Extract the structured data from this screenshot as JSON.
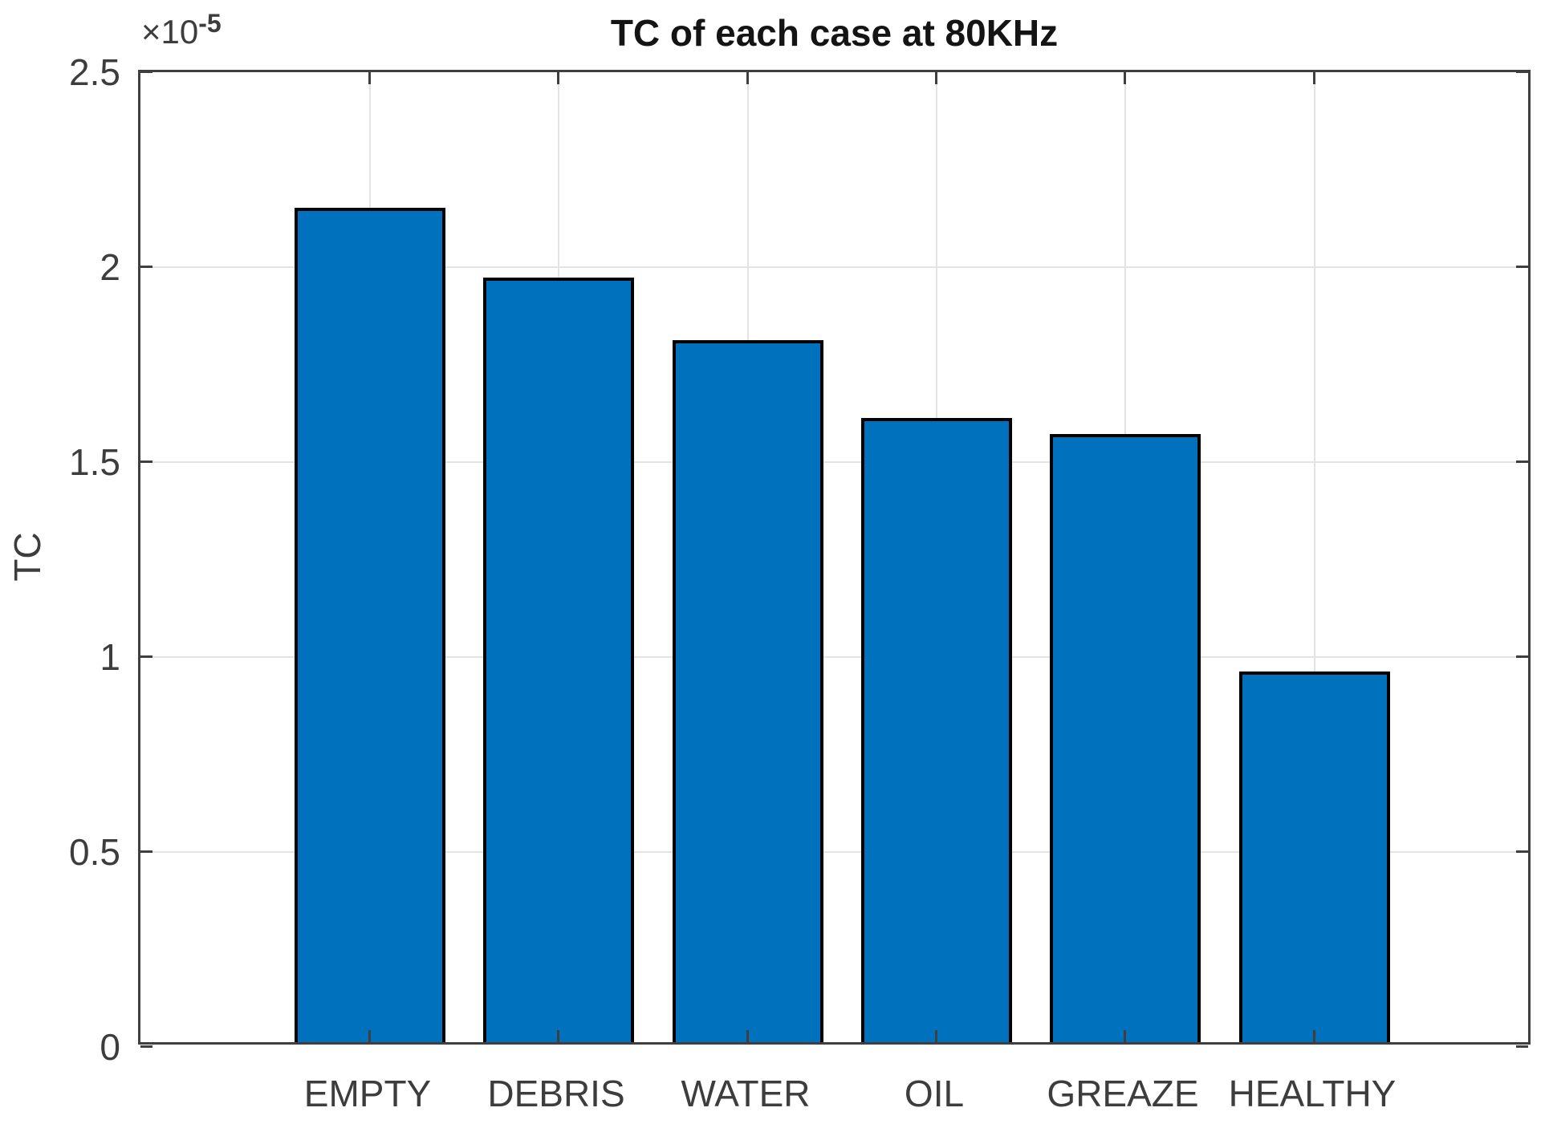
{
  "chart_data": {
    "type": "bar",
    "title": "TC of each case at 80KHz",
    "xlabel": "",
    "ylabel": "TC",
    "y_multiplier": {
      "base": "×10",
      "exponent": "-5"
    },
    "categories": [
      "EMPTY",
      "DEBRIS",
      "WATER",
      "OIL",
      "GREAZE",
      "HEALTHY"
    ],
    "values": [
      2.14e-05,
      1.96e-05,
      1.8e-05,
      1.6e-05,
      1.56e-05,
      9.5e-06
    ],
    "values_in_1e-5_units": [
      2.14,
      1.96,
      1.8,
      1.6,
      1.56,
      0.95
    ],
    "ylim": [
      0,
      2.5e-05
    ],
    "ylim_in_1e-5_units": [
      0,
      2.5
    ],
    "ytick_labels": [
      "0",
      "0.5",
      "1",
      "1.5",
      "2",
      "2.5"
    ],
    "ytick_values_in_1e-5_units": [
      0,
      0.5,
      1,
      1.5,
      2,
      2.5
    ],
    "grid": true,
    "legend": null,
    "bar_color": "#0072bd",
    "bar_edge_color": "#000000"
  }
}
